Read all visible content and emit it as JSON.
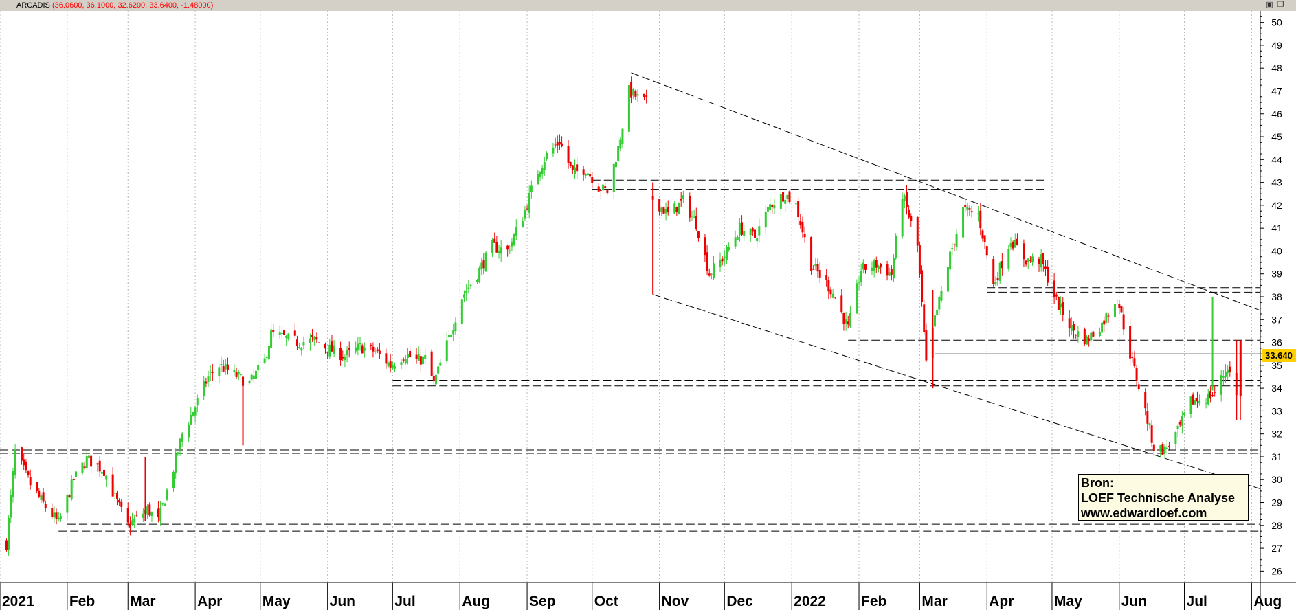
{
  "header": {
    "symbol": "ARCADIS",
    "ohlc_text": "(36.0600, 36.1000, 32.6200, 33.6400, -1.48000)",
    "icons": [
      "chart-options-icon",
      "window-restore-icon"
    ]
  },
  "last_price_label": "33.640",
  "source_box": {
    "line1": "Bron:",
    "line2": "LOEF Technische Analyse",
    "line3": "www.edwardloef.com"
  },
  "colors": {
    "up": "#33cc33",
    "down": "#ee0000",
    "grid": "#b8b8b8",
    "header_bg": "#d4d0c8",
    "ohlc_text": "#ff0000",
    "last_price_bg": "#ffd000"
  },
  "chart_data": {
    "type": "candlestick",
    "title": "ARCADIS",
    "y_axis": {
      "position": "right",
      "ylim": [
        25.5,
        50.5
      ],
      "ticks": [
        26,
        27,
        28,
        29,
        30,
        31,
        32,
        33,
        34,
        35,
        36,
        37,
        38,
        39,
        40,
        41,
        42,
        43,
        44,
        45,
        46,
        47,
        48,
        49,
        50
      ]
    },
    "x_axis": {
      "range": [
        "2021-01-01",
        "2022-08-05"
      ],
      "tick_labels": [
        {
          "date": "2021-01-01",
          "label": "2021"
        },
        {
          "date": "2021-02-01",
          "label": "Feb"
        },
        {
          "date": "2021-03-01",
          "label": "Mar"
        },
        {
          "date": "2021-04-01",
          "label": "Apr"
        },
        {
          "date": "2021-05-01",
          "label": "May"
        },
        {
          "date": "2021-06-01",
          "label": "Jun"
        },
        {
          "date": "2021-07-01",
          "label": "Jul"
        },
        {
          "date": "2021-08-01",
          "label": "Aug"
        },
        {
          "date": "2021-09-01",
          "label": "Sep"
        },
        {
          "date": "2021-10-01",
          "label": "Oct"
        },
        {
          "date": "2021-11-01",
          "label": "Nov"
        },
        {
          "date": "2021-12-01",
          "label": "Dec"
        },
        {
          "date": "2022-01-01",
          "label": "2022"
        },
        {
          "date": "2022-02-01",
          "label": "Feb"
        },
        {
          "date": "2022-03-01",
          "label": "Mar"
        },
        {
          "date": "2022-04-01",
          "label": "Apr"
        },
        {
          "date": "2022-05-01",
          "label": "May"
        },
        {
          "date": "2022-06-01",
          "label": "Jun"
        },
        {
          "date": "2022-07-01",
          "label": "Jul"
        },
        {
          "date": "2022-08-01",
          "label": "Aug"
        }
      ]
    },
    "grid": "vertical-dotted",
    "close_path": [
      [
        "2021-01-04",
        27.2
      ],
      [
        "2021-01-08",
        31.2
      ],
      [
        "2021-01-15",
        29.8
      ],
      [
        "2021-01-22",
        28.8
      ],
      [
        "2021-01-28",
        28.1
      ],
      [
        "2021-02-04",
        30.0
      ],
      [
        "2021-02-10",
        30.9
      ],
      [
        "2021-02-18",
        30.4
      ],
      [
        "2021-02-24",
        29.0
      ],
      [
        "2021-03-01",
        28.0
      ],
      [
        "2021-03-05",
        28.3
      ],
      [
        "2021-03-10",
        28.7
      ],
      [
        "2021-03-15",
        28.2
      ],
      [
        "2021-03-22",
        30.5
      ],
      [
        "2021-03-26",
        32.0
      ],
      [
        "2021-04-01",
        33.2
      ],
      [
        "2021-04-07",
        34.5
      ],
      [
        "2021-04-12",
        35.0
      ],
      [
        "2021-04-19",
        34.6
      ],
      [
        "2021-04-26",
        34.2
      ],
      [
        "2021-05-03",
        35.2
      ],
      [
        "2021-05-06",
        36.4
      ],
      [
        "2021-05-12",
        36.2
      ],
      [
        "2021-05-19",
        36.0
      ],
      [
        "2021-05-26",
        36.1
      ],
      [
        "2021-06-02",
        35.7
      ],
      [
        "2021-06-09",
        35.4
      ],
      [
        "2021-06-16",
        35.8
      ],
      [
        "2021-06-23",
        35.6
      ],
      [
        "2021-06-30",
        35.0
      ],
      [
        "2021-07-07",
        35.5
      ],
      [
        "2021-07-12",
        35.2
      ],
      [
        "2021-07-16",
        35.3
      ],
      [
        "2021-07-20",
        34.2
      ],
      [
        "2021-07-26",
        35.9
      ],
      [
        "2021-08-02",
        38.0
      ],
      [
        "2021-08-09",
        39.0
      ],
      [
        "2021-08-16",
        40.2
      ],
      [
        "2021-08-23",
        40.0
      ],
      [
        "2021-08-30",
        41.5
      ],
      [
        "2021-09-06",
        43.5
      ],
      [
        "2021-09-10",
        44.2
      ],
      [
        "2021-09-16",
        44.8
      ],
      [
        "2021-09-22",
        43.4
      ],
      [
        "2021-09-28",
        43.6
      ],
      [
        "2021-10-04",
        42.8
      ],
      [
        "2021-10-08",
        42.6
      ],
      [
        "2021-10-13",
        44.5
      ],
      [
        "2021-10-18",
        47.0
      ],
      [
        "2021-10-22",
        46.7
      ],
      [
        "2021-10-26",
        46.5
      ]
    ],
    "close_path_2": [
      [
        "2021-10-29",
        42.3
      ],
      [
        "2021-11-05",
        41.6
      ],
      [
        "2021-11-12",
        42.2
      ],
      [
        "2021-11-18",
        41.2
      ],
      [
        "2021-11-24",
        39.0
      ],
      [
        "2021-12-01",
        39.8
      ],
      [
        "2021-12-08",
        41.0
      ],
      [
        "2021-12-15",
        40.6
      ],
      [
        "2021-12-22",
        42.0
      ],
      [
        "2021-12-29",
        42.5
      ],
      [
        "2022-01-03",
        42.0
      ],
      [
        "2022-01-10",
        39.4
      ],
      [
        "2022-01-17",
        38.6
      ],
      [
        "2022-01-21",
        38.0
      ],
      [
        "2022-01-27",
        36.6
      ],
      [
        "2022-02-02",
        39.2
      ],
      [
        "2022-02-09",
        39.4
      ],
      [
        "2022-02-16",
        39.0
      ],
      [
        "2022-02-21",
        42.5
      ],
      [
        "2022-02-28",
        40.2
      ],
      [
        "2022-03-04",
        35.0
      ],
      [
        "2022-03-08",
        37.0
      ],
      [
        "2022-03-15",
        39.8
      ],
      [
        "2022-03-21",
        41.8
      ],
      [
        "2022-03-28",
        41.6
      ],
      [
        "2022-04-04",
        38.5
      ],
      [
        "2022-04-12",
        40.5
      ],
      [
        "2022-04-19",
        39.6
      ],
      [
        "2022-04-26",
        39.6
      ],
      [
        "2022-05-03",
        37.8
      ],
      [
        "2022-05-10",
        36.6
      ],
      [
        "2022-05-17",
        36.1
      ],
      [
        "2022-05-24",
        36.8
      ],
      [
        "2022-05-31",
        38.0
      ],
      [
        "2022-06-06",
        35.5
      ],
      [
        "2022-06-13",
        33.0
      ],
      [
        "2022-06-17",
        31.4
      ],
      [
        "2022-06-22",
        31.3
      ],
      [
        "2022-06-28",
        32.1
      ],
      [
        "2022-07-04",
        33.4
      ],
      [
        "2022-07-12",
        33.6
      ],
      [
        "2022-07-15",
        33.8
      ],
      [
        "2022-07-21",
        35.0
      ],
      [
        "2022-07-25",
        33.64
      ]
    ],
    "long_wicks": [
      {
        "date": "2021-04-23",
        "low": 31.5,
        "high": 34.3,
        "color": "down"
      },
      {
        "date": "2021-03-09",
        "low": 28.2,
        "high": 31.0,
        "color": "down"
      },
      {
        "date": "2021-10-29",
        "low": 38.1,
        "high": 43.0,
        "color": "down"
      },
      {
        "date": "2022-03-07",
        "low": 34.0,
        "high": 38.3,
        "color": "down"
      },
      {
        "date": "2022-07-14",
        "low": 33.9,
        "high": 38.0,
        "color": "up"
      },
      {
        "date": "2022-07-25",
        "low": 32.62,
        "high": 36.1,
        "color": "down"
      }
    ],
    "last_candle": {
      "date": "2022-07-25",
      "open": 36.06,
      "high": 36.1,
      "low": 32.62,
      "close": 33.64,
      "change": -1.48
    },
    "annotations": {
      "horizontal_levels": [
        {
          "y": 31.3,
          "from": "2021-01-01",
          "to": "2022-08-05",
          "style": "dashed"
        },
        {
          "y": 31.15,
          "from": "2021-01-01",
          "to": "2022-08-05",
          "style": "dashed"
        },
        {
          "y": 28.05,
          "from": "2021-02-01",
          "to": "2022-08-05",
          "style": "dashed"
        },
        {
          "y": 27.75,
          "from": "2021-01-28",
          "to": "2022-08-05",
          "style": "dashed"
        },
        {
          "y": 34.35,
          "from": "2021-07-01",
          "to": "2022-08-05",
          "style": "dashed"
        },
        {
          "y": 34.1,
          "from": "2021-07-01",
          "to": "2022-08-05",
          "style": "dashed"
        },
        {
          "y": 43.1,
          "from": "2021-10-01",
          "to": "2022-04-29",
          "style": "dashed"
        },
        {
          "y": 42.7,
          "from": "2021-10-01",
          "to": "2022-04-29",
          "style": "dashed"
        },
        {
          "y": 38.4,
          "from": "2022-04-01",
          "to": "2022-08-05",
          "style": "dashed"
        },
        {
          "y": 38.2,
          "from": "2022-04-01",
          "to": "2022-08-05",
          "style": "dashed"
        },
        {
          "y": 36.1,
          "from": "2022-01-27",
          "to": "2022-08-05",
          "style": "dashed"
        },
        {
          "y": 35.5,
          "from": "2022-03-08",
          "to": "2022-08-05",
          "style": "solid"
        }
      ],
      "trendlines": [
        {
          "from": [
            "2021-10-19",
            47.8
          ],
          "to": [
            "2022-08-05",
            37.4
          ],
          "style": "dashed"
        },
        {
          "from": [
            "2021-10-29",
            38.1
          ],
          "to": [
            "2022-08-05",
            29.6
          ],
          "style": "dashed"
        }
      ]
    }
  }
}
